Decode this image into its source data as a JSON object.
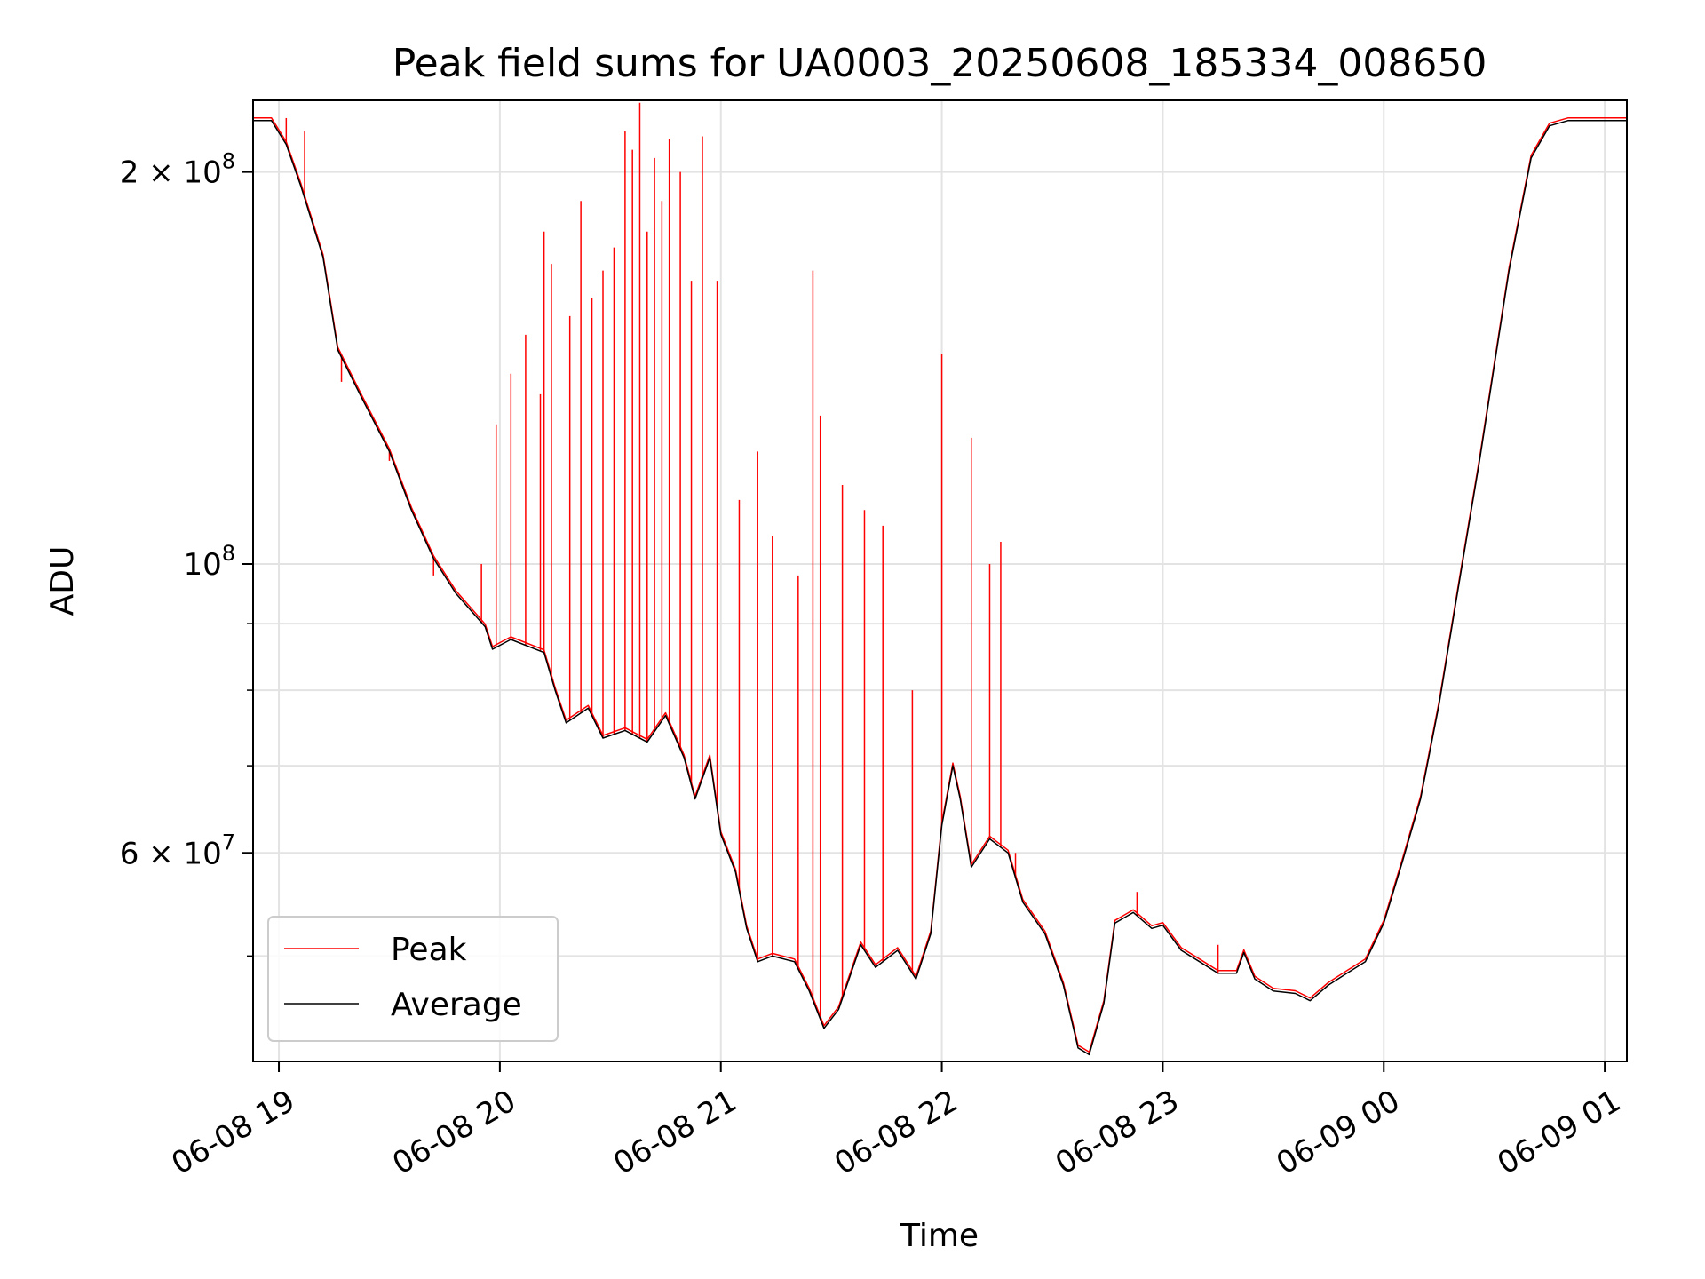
{
  "chart_data": {
    "type": "line",
    "title": "Peak field sums for UA0003_20250608_185334_008650",
    "xlabel": "Time",
    "ylabel": "ADU",
    "yscale": "log",
    "grid": true,
    "legend_position": "lower-left",
    "ylim": [
      41500000,
      227000000
    ],
    "xlim": [
      "2025-06-08 18:53",
      "2025-06-09 01:06"
    ],
    "x_ticks": [
      {
        "t": "2025-06-08 19:00",
        "label": "06-08 19"
      },
      {
        "t": "2025-06-08 20:00",
        "label": "06-08 20"
      },
      {
        "t": "2025-06-08 21:00",
        "label": "06-08 21"
      },
      {
        "t": "2025-06-08 22:00",
        "label": "06-08 22"
      },
      {
        "t": "2025-06-08 23:00",
        "label": "06-08 23"
      },
      {
        "t": "2025-06-09 00:00",
        "label": "06-09 00"
      },
      {
        "t": "2025-06-09 01:00",
        "label": "06-09 01"
      }
    ],
    "y_major_ticks": [
      {
        "value": 60000000,
        "mantissa": "6",
        "exponent": "7"
      },
      {
        "value": 100000000,
        "mantissa": "",
        "exponent": "8"
      },
      {
        "value": 200000000,
        "mantissa": "2",
        "exponent": "8"
      }
    ],
    "y_minor_ticks": [
      50000000,
      70000000,
      80000000,
      90000000
    ],
    "series": [
      {
        "name": "Average",
        "color": "#000000",
        "points": [
          [
            "2025-06-08 18:53",
            219000000
          ],
          [
            "2025-06-08 18:58",
            219000000
          ],
          [
            "2025-06-08 19:02",
            210000000
          ],
          [
            "2025-06-08 19:06",
            195000000
          ],
          [
            "2025-06-08 19:12",
            172000000
          ],
          [
            "2025-06-08 19:16",
            146000000
          ],
          [
            "2025-06-08 19:22",
            135000000
          ],
          [
            "2025-06-08 19:30",
            122000000
          ],
          [
            "2025-06-08 19:36",
            110000000
          ],
          [
            "2025-06-08 19:42",
            101000000
          ],
          [
            "2025-06-08 19:48",
            95000000
          ],
          [
            "2025-06-08 19:56",
            89500000
          ],
          [
            "2025-06-08 19:58",
            86000000
          ],
          [
            "2025-06-08 20:03",
            87500000
          ],
          [
            "2025-06-08 20:12",
            85500000
          ],
          [
            "2025-06-08 20:15",
            80000000
          ],
          [
            "2025-06-08 20:18",
            75500000
          ],
          [
            "2025-06-08 20:24",
            77500000
          ],
          [
            "2025-06-08 20:28",
            73500000
          ],
          [
            "2025-06-08 20:34",
            74500000
          ],
          [
            "2025-06-08 20:40",
            73000000
          ],
          [
            "2025-06-08 20:45",
            76500000
          ],
          [
            "2025-06-08 20:50",
            71000000
          ],
          [
            "2025-06-08 20:53",
            66000000
          ],
          [
            "2025-06-08 20:57",
            71000000
          ],
          [
            "2025-06-08 21:00",
            62000000
          ],
          [
            "2025-06-08 21:04",
            58000000
          ],
          [
            "2025-06-08 21:07",
            52500000
          ],
          [
            "2025-06-08 21:10",
            49500000
          ],
          [
            "2025-06-08 21:14",
            50000000
          ],
          [
            "2025-06-08 21:20",
            49500000
          ],
          [
            "2025-06-08 21:24",
            47000000
          ],
          [
            "2025-06-08 21:28",
            44000000
          ],
          [
            "2025-06-08 21:32",
            45500000
          ],
          [
            "2025-06-08 21:38",
            51000000
          ],
          [
            "2025-06-08 21:42",
            49000000
          ],
          [
            "2025-06-08 21:48",
            50500000
          ],
          [
            "2025-06-08 21:53",
            48000000
          ],
          [
            "2025-06-08 21:57",
            52000000
          ],
          [
            "2025-06-08 22:00",
            63000000
          ],
          [
            "2025-06-08 22:03",
            70000000
          ],
          [
            "2025-06-08 22:05",
            66000000
          ],
          [
            "2025-06-08 22:08",
            58500000
          ],
          [
            "2025-06-08 22:13",
            61500000
          ],
          [
            "2025-06-08 22:18",
            60000000
          ],
          [
            "2025-06-08 22:22",
            55000000
          ],
          [
            "2025-06-08 22:28",
            52000000
          ],
          [
            "2025-06-08 22:33",
            47500000
          ],
          [
            "2025-06-08 22:37",
            42500000
          ],
          [
            "2025-06-08 22:40",
            42000000
          ],
          [
            "2025-06-08 22:44",
            46000000
          ],
          [
            "2025-06-08 22:47",
            53000000
          ],
          [
            "2025-06-08 22:52",
            54000000
          ],
          [
            "2025-06-08 22:57",
            52500000
          ],
          [
            "2025-06-08 23:00",
            52800000
          ],
          [
            "2025-06-08 23:05",
            50500000
          ],
          [
            "2025-06-08 23:10",
            49500000
          ],
          [
            "2025-06-08 23:15",
            48500000
          ],
          [
            "2025-06-08 23:20",
            48500000
          ],
          [
            "2025-06-08 23:22",
            50300000
          ],
          [
            "2025-06-08 23:25",
            48000000
          ],
          [
            "2025-06-08 23:30",
            47000000
          ],
          [
            "2025-06-08 23:36",
            46800000
          ],
          [
            "2025-06-08 23:40",
            46200000
          ],
          [
            "2025-06-08 23:45",
            47500000
          ],
          [
            "2025-06-08 23:50",
            48500000
          ],
          [
            "2025-06-08 23:55",
            49500000
          ],
          [
            "2025-06-09 00:00",
            53000000
          ],
          [
            "2025-06-09 00:05",
            59000000
          ],
          [
            "2025-06-09 00:10",
            66000000
          ],
          [
            "2025-06-09 00:15",
            78000000
          ],
          [
            "2025-06-09 00:20",
            95000000
          ],
          [
            "2025-06-09 00:26",
            120000000
          ],
          [
            "2025-06-09 00:30",
            142000000
          ],
          [
            "2025-06-09 00:34",
            168000000
          ],
          [
            "2025-06-09 00:40",
            205000000
          ],
          [
            "2025-06-09 00:45",
            217000000
          ],
          [
            "2025-06-09 00:50",
            219000000
          ],
          [
            "2025-06-09 01:06",
            219000000
          ]
        ]
      },
      {
        "name": "Peak",
        "color": "#ff0000",
        "spikes": [
          [
            "2025-06-08 19:02",
            220000000
          ],
          [
            "2025-06-08 19:07",
            215000000
          ],
          [
            "2025-06-08 19:17",
            138000000
          ],
          [
            "2025-06-08 19:30",
            120000000
          ],
          [
            "2025-06-08 19:42",
            98000000
          ],
          [
            "2025-06-08 19:55",
            100000000
          ],
          [
            "2025-06-08 19:59",
            128000000
          ],
          [
            "2025-06-08 20:03",
            140000000
          ],
          [
            "2025-06-08 20:07",
            150000000
          ],
          [
            "2025-06-08 20:11",
            135000000
          ],
          [
            "2025-06-08 20:12",
            180000000
          ],
          [
            "2025-06-08 20:14",
            170000000
          ],
          [
            "2025-06-08 20:19",
            155000000
          ],
          [
            "2025-06-08 20:22",
            190000000
          ],
          [
            "2025-06-08 20:25",
            160000000
          ],
          [
            "2025-06-08 20:28",
            168000000
          ],
          [
            "2025-06-08 20:31",
            175000000
          ],
          [
            "2025-06-08 20:34",
            215000000
          ],
          [
            "2025-06-08 20:36",
            208000000
          ],
          [
            "2025-06-08 20:38",
            226000000
          ],
          [
            "2025-06-08 20:40",
            180000000
          ],
          [
            "2025-06-08 20:42",
            205000000
          ],
          [
            "2025-06-08 20:44",
            190000000
          ],
          [
            "2025-06-08 20:46",
            212000000
          ],
          [
            "2025-06-08 20:49",
            200000000
          ],
          [
            "2025-06-08 20:52",
            165000000
          ],
          [
            "2025-06-08 20:55",
            213000000
          ],
          [
            "2025-06-08 20:59",
            165000000
          ],
          [
            "2025-06-08 21:05",
            112000000
          ],
          [
            "2025-06-08 21:10",
            122000000
          ],
          [
            "2025-06-08 21:14",
            105000000
          ],
          [
            "2025-06-08 21:21",
            98000000
          ],
          [
            "2025-06-08 21:25",
            168000000
          ],
          [
            "2025-06-08 21:27",
            130000000
          ],
          [
            "2025-06-08 21:33",
            115000000
          ],
          [
            "2025-06-08 21:39",
            110000000
          ],
          [
            "2025-06-08 21:44",
            107000000
          ],
          [
            "2025-06-08 21:52",
            80000000
          ],
          [
            "2025-06-08 22:00",
            145000000
          ],
          [
            "2025-06-08 22:08",
            125000000
          ],
          [
            "2025-06-08 22:13",
            100000000
          ],
          [
            "2025-06-08 22:16",
            104000000
          ],
          [
            "2025-06-08 22:20",
            60000000
          ],
          [
            "2025-06-08 22:53",
            56000000
          ],
          [
            "2025-06-08 23:15",
            51000000
          ]
        ]
      }
    ]
  }
}
